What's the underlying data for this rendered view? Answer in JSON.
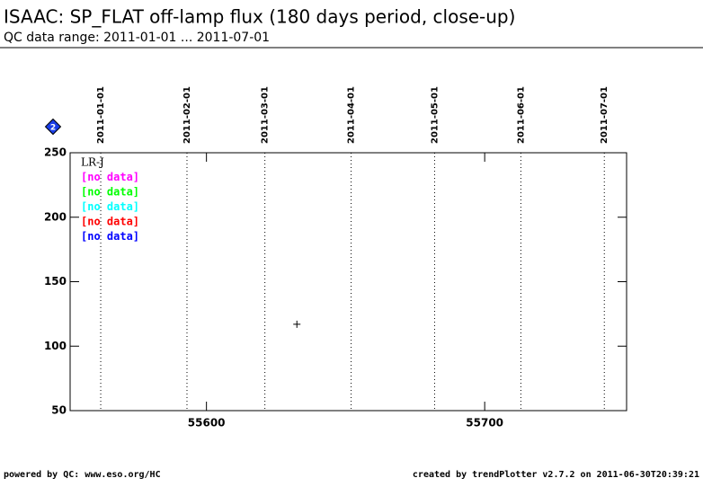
{
  "chart_data": {
    "type": "scatter",
    "title": "ISAAC: SP_FLAT off-lamp flux (180 days period, close-up)",
    "subtitle": "QC data range: 2011-01-01 ... 2011-07-01",
    "badge": "2",
    "legend_title": "LR-J",
    "series": [
      {
        "name": "LR-J",
        "color": "#000000",
        "x": [
          55632.5
        ],
        "values": [
          117
        ]
      },
      {
        "name": "[no data]",
        "color": "#ff00ff",
        "x": [],
        "values": []
      },
      {
        "name": "[no data]",
        "color": "#00ff00",
        "x": [],
        "values": []
      },
      {
        "name": "[no data]",
        "color": "#00ffff",
        "x": [],
        "values": []
      },
      {
        "name": "[no data]",
        "color": "#ff0000",
        "x": [],
        "values": []
      },
      {
        "name": "[no data]",
        "color": "#0000ff",
        "x": [],
        "values": []
      }
    ],
    "xlim": [
      55551,
      55751
    ],
    "xticks": [
      55600,
      55700
    ],
    "ylim": [
      50,
      250
    ],
    "yticks": [
      50,
      100,
      150,
      200,
      250
    ],
    "date_markers": [
      {
        "value": 55562,
        "label": "2011-01-01"
      },
      {
        "value": 55593,
        "label": "2011-02-01"
      },
      {
        "value": 55621,
        "label": "2011-03-01"
      },
      {
        "value": 55652,
        "label": "2011-04-01"
      },
      {
        "value": 55682,
        "label": "2011-05-01"
      },
      {
        "value": 55713,
        "label": "2011-06-01"
      },
      {
        "value": 55743,
        "label": "2011-07-01"
      }
    ],
    "footer_left": "powered by QC: www.eso.org/HC",
    "footer_right": "created by trendPlotter v2.7.2 on 2011-06-30T20:39:21"
  }
}
